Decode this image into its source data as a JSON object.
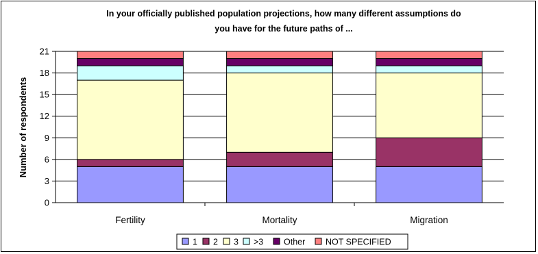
{
  "chart_data": {
    "type": "bar",
    "stacked": true,
    "title_lines": [
      "In your officially published population projections, how many different assumptions do",
      "you have for the future paths of ..."
    ],
    "xlabel": "",
    "ylabel": "Number of respondents",
    "ylim": [
      0,
      21
    ],
    "yticks": [
      0,
      3,
      6,
      9,
      12,
      15,
      18,
      21
    ],
    "grid": "horizontal",
    "legend_position": "bottom",
    "categories": [
      "Fertility",
      "Mortality",
      "Migration"
    ],
    "series": [
      {
        "name": "1",
        "color": "#9999ff",
        "values": [
          5,
          5,
          5
        ]
      },
      {
        "name": "2",
        "color": "#993366",
        "values": [
          1,
          2,
          4
        ]
      },
      {
        "name": "3",
        "color": "#ffffcc",
        "values": [
          11,
          11,
          9
        ]
      },
      {
        "name": ">3",
        "color": "#ccffff",
        "values": [
          2,
          1,
          1
        ]
      },
      {
        "name": "Other",
        "color": "#660066",
        "values": [
          1,
          1,
          1
        ]
      },
      {
        "name": "NOT SPECIFIED",
        "color": "#ff8080",
        "values": [
          1,
          1,
          1
        ]
      }
    ]
  }
}
